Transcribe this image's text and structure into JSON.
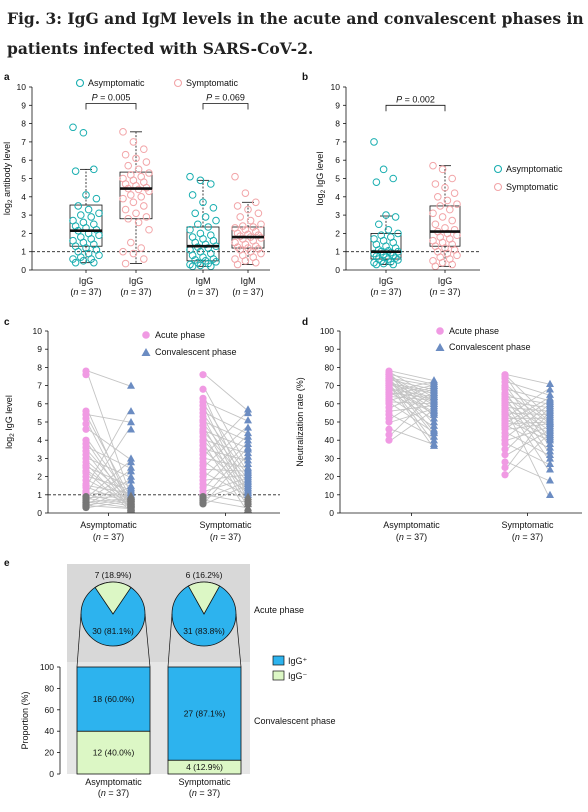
{
  "figure_title": "Fig. 3: IgG and IgM levels in the acute and convalescent phases in patients infected with SARS-CoV-2.",
  "colors": {
    "asymptomatic": "#1aaeb0",
    "symptomatic": "#f2a5a8",
    "acute": "#f09ae3",
    "convalescent": "#6b8cc2",
    "igg_pos": "#2db3ee",
    "igg_neg": "#dcf7c5",
    "line": "#c4c4c4",
    "below_cutoff": "#777777"
  },
  "chart_data": [
    {
      "panel": "a",
      "type": "box",
      "ylabel_main": "log",
      "ylabel_sub": "2",
      "ylabel_rest": " antibody level",
      "ylim": [
        0,
        10
      ],
      "yticks": [
        0,
        1,
        2,
        3,
        4,
        5,
        6,
        7,
        8,
        9,
        10
      ],
      "cutoff": 1,
      "legend": [
        "Asymptomatic",
        "Symptomatic"
      ],
      "groups": [
        {
          "label": "IgG",
          "n": "(n = 37)",
          "series": "Asymptomatic",
          "q1": 1.3,
          "median": 2.15,
          "q3": 3.55,
          "wlo": 0.4,
          "whi": 5.5,
          "points": [
            7.8,
            7.5,
            5.5,
            5.4,
            4.1,
            3.9,
            3.5,
            3.3,
            3.1,
            3.0,
            2.9,
            2.7,
            2.6,
            2.5,
            2.4,
            2.3,
            2.2,
            2.15,
            2.0,
            1.9,
            1.8,
            1.7,
            1.6,
            1.5,
            1.4,
            1.3,
            1.2,
            1.1,
            1.0,
            0.9,
            0.8,
            0.7,
            0.6,
            0.6,
            0.5,
            0.4,
            0.4
          ]
        },
        {
          "label": "IgG",
          "n": "(n = 37)",
          "series": "Symptomatic",
          "q1": 2.8,
          "median": 4.45,
          "q3": 5.35,
          "wlo": 0.35,
          "whi": 7.55,
          "points": [
            7.55,
            7.0,
            6.6,
            6.3,
            6.1,
            5.9,
            5.7,
            5.5,
            5.3,
            5.2,
            5.1,
            5.0,
            4.9,
            4.8,
            4.7,
            4.6,
            4.5,
            4.45,
            4.4,
            4.3,
            4.1,
            4.0,
            3.9,
            3.7,
            3.5,
            3.3,
            3.1,
            2.9,
            2.8,
            2.6,
            2.2,
            1.5,
            1.2,
            1.0,
            0.9,
            0.6,
            0.35
          ]
        },
        {
          "label": "IgM",
          "n": "(n = 37)",
          "series": "Asymptomatic",
          "q1": 0.5,
          "median": 1.3,
          "q3": 2.35,
          "wlo": 0.2,
          "whi": 4.9,
          "points": [
            5.1,
            4.9,
            4.7,
            4.1,
            3.7,
            3.4,
            3.1,
            2.9,
            2.7,
            2.5,
            2.35,
            2.2,
            2.0,
            1.9,
            1.8,
            1.7,
            1.6,
            1.5,
            1.4,
            1.3,
            1.25,
            1.2,
            1.1,
            1.0,
            0.9,
            0.8,
            0.7,
            0.6,
            0.55,
            0.5,
            0.45,
            0.4,
            0.35,
            0.3,
            0.25,
            0.2,
            0.2
          ]
        },
        {
          "label": "IgM",
          "n": "(n = 37)",
          "series": "Symptomatic",
          "q1": 1.2,
          "median": 1.8,
          "q3": 2.35,
          "wlo": 0.3,
          "whi": 3.7,
          "points": [
            5.1,
            4.2,
            3.7,
            3.5,
            3.3,
            3.1,
            2.9,
            2.7,
            2.5,
            2.4,
            2.35,
            2.3,
            2.2,
            2.1,
            2.0,
            1.95,
            1.9,
            1.85,
            1.8,
            1.75,
            1.7,
            1.6,
            1.5,
            1.4,
            1.3,
            1.25,
            1.2,
            1.15,
            1.1,
            1.0,
            0.9,
            0.8,
            0.7,
            0.6,
            0.5,
            0.4,
            0.3
          ]
        }
      ],
      "comparisons": [
        {
          "from": 0,
          "to": 1,
          "label": "P = 0.005",
          "y": 9.1
        },
        {
          "from": 2,
          "to": 3,
          "label": "P = 0.069",
          "y": 9.1
        }
      ]
    },
    {
      "panel": "b",
      "type": "box",
      "ylabel_main": "log",
      "ylabel_sub": "2",
      "ylabel_rest": " IgG level",
      "ylim": [
        0,
        10
      ],
      "yticks": [
        0,
        1,
        2,
        3,
        4,
        5,
        6,
        7,
        8,
        9,
        10
      ],
      "cutoff": 1,
      "legend": [
        "Asymptomatic",
        "Symptomatic"
      ],
      "groups": [
        {
          "label": "IgG",
          "n": "(n = 37)",
          "series": "Asymptomatic",
          "q1": 0.6,
          "median": 1.0,
          "q3": 2.0,
          "wlo": 0.3,
          "whi": 2.95,
          "points": [
            7.0,
            5.5,
            5.0,
            4.8,
            3.0,
            2.9,
            2.5,
            2.2,
            2.0,
            1.9,
            1.8,
            1.7,
            1.6,
            1.5,
            1.4,
            1.3,
            1.2,
            1.1,
            1.05,
            1.0,
            1.0,
            0.95,
            0.9,
            0.85,
            0.8,
            0.75,
            0.7,
            0.65,
            0.6,
            0.6,
            0.55,
            0.5,
            0.45,
            0.4,
            0.35,
            0.3,
            0.3
          ]
        },
        {
          "label": "IgG",
          "n": "(n = 37)",
          "series": "Symptomatic",
          "q1": 1.3,
          "median": 2.1,
          "q3": 3.5,
          "wlo": 0.2,
          "whi": 5.7,
          "points": [
            5.7,
            5.5,
            5.0,
            4.7,
            4.5,
            4.2,
            4.0,
            3.8,
            3.6,
            3.5,
            3.3,
            3.1,
            2.9,
            2.7,
            2.5,
            2.3,
            2.2,
            2.1,
            2.0,
            1.9,
            1.8,
            1.7,
            1.6,
            1.5,
            1.4,
            1.3,
            1.2,
            1.1,
            1.0,
            0.9,
            0.8,
            0.7,
            0.6,
            0.5,
            0.4,
            0.3,
            0.2
          ]
        }
      ],
      "comparisons": [
        {
          "from": 0,
          "to": 1,
          "label": "P = 0.002",
          "y": 9.0
        }
      ]
    },
    {
      "panel": "c",
      "type": "paired_dot",
      "ylabel_main": "log",
      "ylabel_sub": "2",
      "ylabel_rest": " IgG level",
      "ylim": [
        0,
        10
      ],
      "yticks": [
        0,
        1,
        2,
        3,
        4,
        5,
        6,
        7,
        8,
        9,
        10
      ],
      "cutoff": 1,
      "legend": [
        "Acute phase",
        "Convalescent phase"
      ],
      "groups": [
        {
          "label": "Asymptomatic",
          "n": "(n = 37)",
          "acute": [
            7.8,
            7.6,
            5.6,
            5.4,
            5.2,
            4.9,
            4.6,
            4.0,
            3.8,
            3.6,
            3.4,
            3.2,
            3.0,
            2.8,
            2.6,
            2.5,
            2.3,
            2.2,
            2.0,
            1.8,
            1.6,
            1.5,
            1.4,
            1.2,
            1.1,
            1.0,
            0.9,
            0.85,
            0.8,
            0.7,
            0.6,
            0.6,
            0.5,
            0.45,
            0.4,
            0.35,
            0.3
          ],
          "convalescent": [
            7.0,
            5.6,
            5.0,
            4.6,
            3.0,
            2.8,
            2.5,
            2.3,
            2.0,
            1.8,
            1.5,
            1.4,
            1.3,
            1.2,
            1.1,
            1.0,
            0.95,
            0.9,
            0.9,
            0.85,
            0.8,
            0.8,
            0.75,
            0.7,
            0.65,
            0.6,
            0.6,
            0.55,
            0.5,
            0.5,
            0.45,
            0.4,
            0.35,
            0.3,
            0.3,
            0.25,
            0.2
          ]
        },
        {
          "label": "Symptomatic",
          "n": "(n = 37)",
          "acute": [
            7.6,
            6.8,
            6.3,
            6.1,
            5.9,
            5.7,
            5.5,
            5.3,
            5.1,
            5.0,
            4.8,
            4.6,
            4.5,
            4.4,
            4.2,
            4.0,
            3.9,
            3.7,
            3.5,
            3.4,
            3.2,
            3.0,
            2.8,
            2.6,
            2.4,
            2.2,
            2.0,
            1.8,
            1.6,
            1.4,
            1.2,
            1.0,
            0.9,
            0.8,
            0.7,
            0.6,
            0.5
          ],
          "convalescent": [
            5.7,
            5.5,
            5.1,
            4.7,
            4.4,
            4.2,
            4.0,
            3.8,
            3.6,
            3.5,
            3.3,
            3.1,
            2.9,
            2.7,
            2.5,
            2.4,
            2.3,
            2.2,
            2.1,
            2.0,
            1.9,
            1.8,
            1.7,
            1.6,
            1.5,
            1.4,
            1.3,
            1.2,
            1.1,
            1.0,
            0.9,
            0.8,
            0.7,
            0.6,
            0.5,
            0.3,
            0.2
          ]
        }
      ]
    },
    {
      "panel": "d",
      "type": "paired_dot",
      "ylabel_main": "Neutralization rate (%)",
      "ylim": [
        0,
        100
      ],
      "yticks": [
        0,
        10,
        20,
        30,
        40,
        50,
        60,
        70,
        80,
        90,
        100
      ],
      "legend": [
        "Acute phase",
        "Convalescent phase"
      ],
      "groups": [
        {
          "label": "Asymptomatic",
          "n": "(n = 37)",
          "acute": [
            78,
            77,
            76,
            76,
            75,
            75,
            74,
            74,
            73,
            73,
            72,
            72,
            71,
            71,
            70,
            70,
            69,
            69,
            68,
            68,
            67,
            66,
            66,
            65,
            64,
            63,
            62,
            61,
            60,
            58,
            56,
            54,
            52,
            50,
            46,
            43,
            40
          ],
          "convalescent": [
            73,
            72,
            71,
            70,
            70,
            69,
            68,
            68,
            67,
            66,
            66,
            65,
            64,
            64,
            63,
            62,
            62,
            61,
            60,
            60,
            59,
            58,
            57,
            56,
            56,
            55,
            54,
            52,
            50,
            48,
            46,
            45,
            44,
            42,
            40,
            38,
            37
          ]
        },
        {
          "label": "Symptomatic",
          "n": "(n = 37)",
          "acute": [
            76,
            75,
            74,
            72,
            70,
            69,
            68,
            66,
            65,
            64,
            63,
            62,
            61,
            60,
            59,
            58,
            57,
            56,
            55,
            54,
            53,
            52,
            51,
            50,
            49,
            48,
            47,
            46,
            44,
            42,
            40,
            38,
            35,
            32,
            28,
            25,
            21
          ],
          "convalescent": [
            71,
            68,
            65,
            63,
            62,
            61,
            60,
            59,
            58,
            57,
            56,
            55,
            54,
            53,
            52,
            51,
            50,
            50,
            49,
            48,
            47,
            46,
            45,
            44,
            43,
            42,
            41,
            40,
            38,
            36,
            34,
            32,
            30,
            27,
            24,
            18,
            10
          ]
        }
      ]
    },
    {
      "panel": "e",
      "type": "pie_and_stacked_bar",
      "ylabel": "Proportion (%)",
      "ylim": [
        0,
        100
      ],
      "yticks": [
        0,
        20,
        40,
        60,
        80,
        100
      ],
      "acute_label": "Acute phase",
      "convalescent_label": "Convalescent phase",
      "legend": [
        "IgG⁺",
        "IgG⁻"
      ],
      "groups": [
        {
          "label": "Asymptomatic",
          "n": "(n = 37)",
          "acute_pos": 30,
          "acute_neg": 7,
          "acute_pos_label": "30 (81.1%)",
          "acute_neg_label": "7 (18.9%)",
          "conv_pos_pct": 60.0,
          "conv_neg_pct": 40.0,
          "conv_pos_label": "18 (60.0%)",
          "conv_neg_label": "12 (40.0%)"
        },
        {
          "label": "Symptomatic",
          "n": "(n = 37)",
          "acute_pos": 31,
          "acute_neg": 6,
          "acute_pos_label": "31 (83.8%)",
          "acute_neg_label": "6 (16.2%)",
          "conv_pos_pct": 87.1,
          "conv_neg_pct": 12.9,
          "conv_pos_label": "27 (87.1%)",
          "conv_neg_label": "4 (12.9%)"
        }
      ]
    }
  ]
}
